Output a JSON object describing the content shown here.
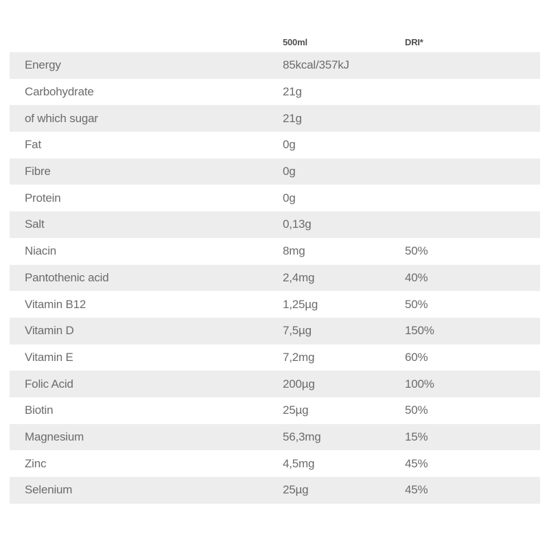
{
  "colors": {
    "stripe": "#ededed",
    "body_text": "#6b6b6d",
    "header_text": "#4f4f51"
  },
  "table": {
    "columns": {
      "nutrient": "",
      "amount": "500ml",
      "dri": "DRI*"
    },
    "rows": [
      {
        "label": "Energy",
        "amount": "85kcal/357kJ",
        "dri": ""
      },
      {
        "label": "Carbohydrate",
        "amount": "21g",
        "dri": ""
      },
      {
        "label": "of which sugar",
        "amount": "21g",
        "dri": ""
      },
      {
        "label": "Fat",
        "amount": "0g",
        "dri": ""
      },
      {
        "label": "Fibre",
        "amount": "0g",
        "dri": ""
      },
      {
        "label": "Protein",
        "amount": "0g",
        "dri": ""
      },
      {
        "label": "Salt",
        "amount": "0,13g",
        "dri": ""
      },
      {
        "label": "Niacin",
        "amount": "8mg",
        "dri": "50%"
      },
      {
        "label": "Pantothenic acid",
        "amount": "2,4mg",
        "dri": "40%"
      },
      {
        "label": "Vitamin B12",
        "amount": "1,25µg",
        "dri": "50%"
      },
      {
        "label": "Vitamin D",
        "amount": "7,5µg",
        "dri": "150%"
      },
      {
        "label": "Vitamin E",
        "amount": "7,2mg",
        "dri": "60%"
      },
      {
        "label": "Folic Acid",
        "amount": "200µg",
        "dri": "100%"
      },
      {
        "label": "Biotin",
        "amount": "25µg",
        "dri": "50%"
      },
      {
        "label": "Magnesium",
        "amount": "56,3mg",
        "dri": "15%"
      },
      {
        "label": "Zinc",
        "amount": "4,5mg",
        "dri": "45%"
      },
      {
        "label": "Selenium",
        "amount": "25µg",
        "dri": "45%"
      }
    ]
  }
}
